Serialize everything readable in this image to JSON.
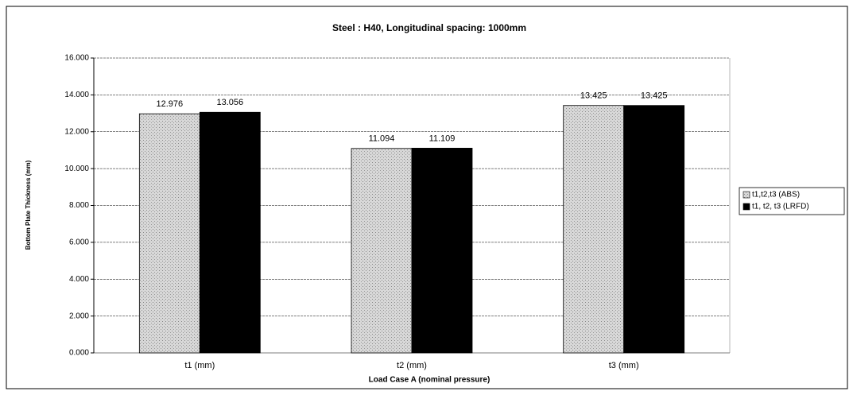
{
  "chart_data": {
    "type": "bar",
    "title": "Steel : H40, Longitudinal spacing: 1000mm",
    "x_label": "Load Case A (nominal pressure)",
    "y_label": "Bottom Plate Thickness (mm)",
    "categories": [
      "t1 (mm)",
      "t2 (mm)",
      "t3 (mm)"
    ],
    "series": [
      {
        "name": "t1,t2,t3 (ABS)",
        "color": "#bdbdbd",
        "values": [
          12.976,
          11.094,
          13.425
        ]
      },
      {
        "name": "t1, t2, t3 (LRFD)",
        "color": "#000000",
        "values": [
          13.056,
          11.109,
          13.425
        ]
      }
    ],
    "ylim": [
      0,
      16
    ],
    "yticks": [
      {
        "value": 0,
        "label": "0.000"
      },
      {
        "value": 2,
        "label": "2.000"
      },
      {
        "value": 4,
        "label": "4.000"
      },
      {
        "value": 6,
        "label": "6.000"
      },
      {
        "value": 8,
        "label": "8.000"
      },
      {
        "value": 10,
        "label": "10.000"
      },
      {
        "value": 12,
        "label": "12.000"
      },
      {
        "value": 14,
        "label": "14.000"
      },
      {
        "value": 16,
        "label": "16.000"
      }
    ],
    "grid": true,
    "legend": "right"
  }
}
